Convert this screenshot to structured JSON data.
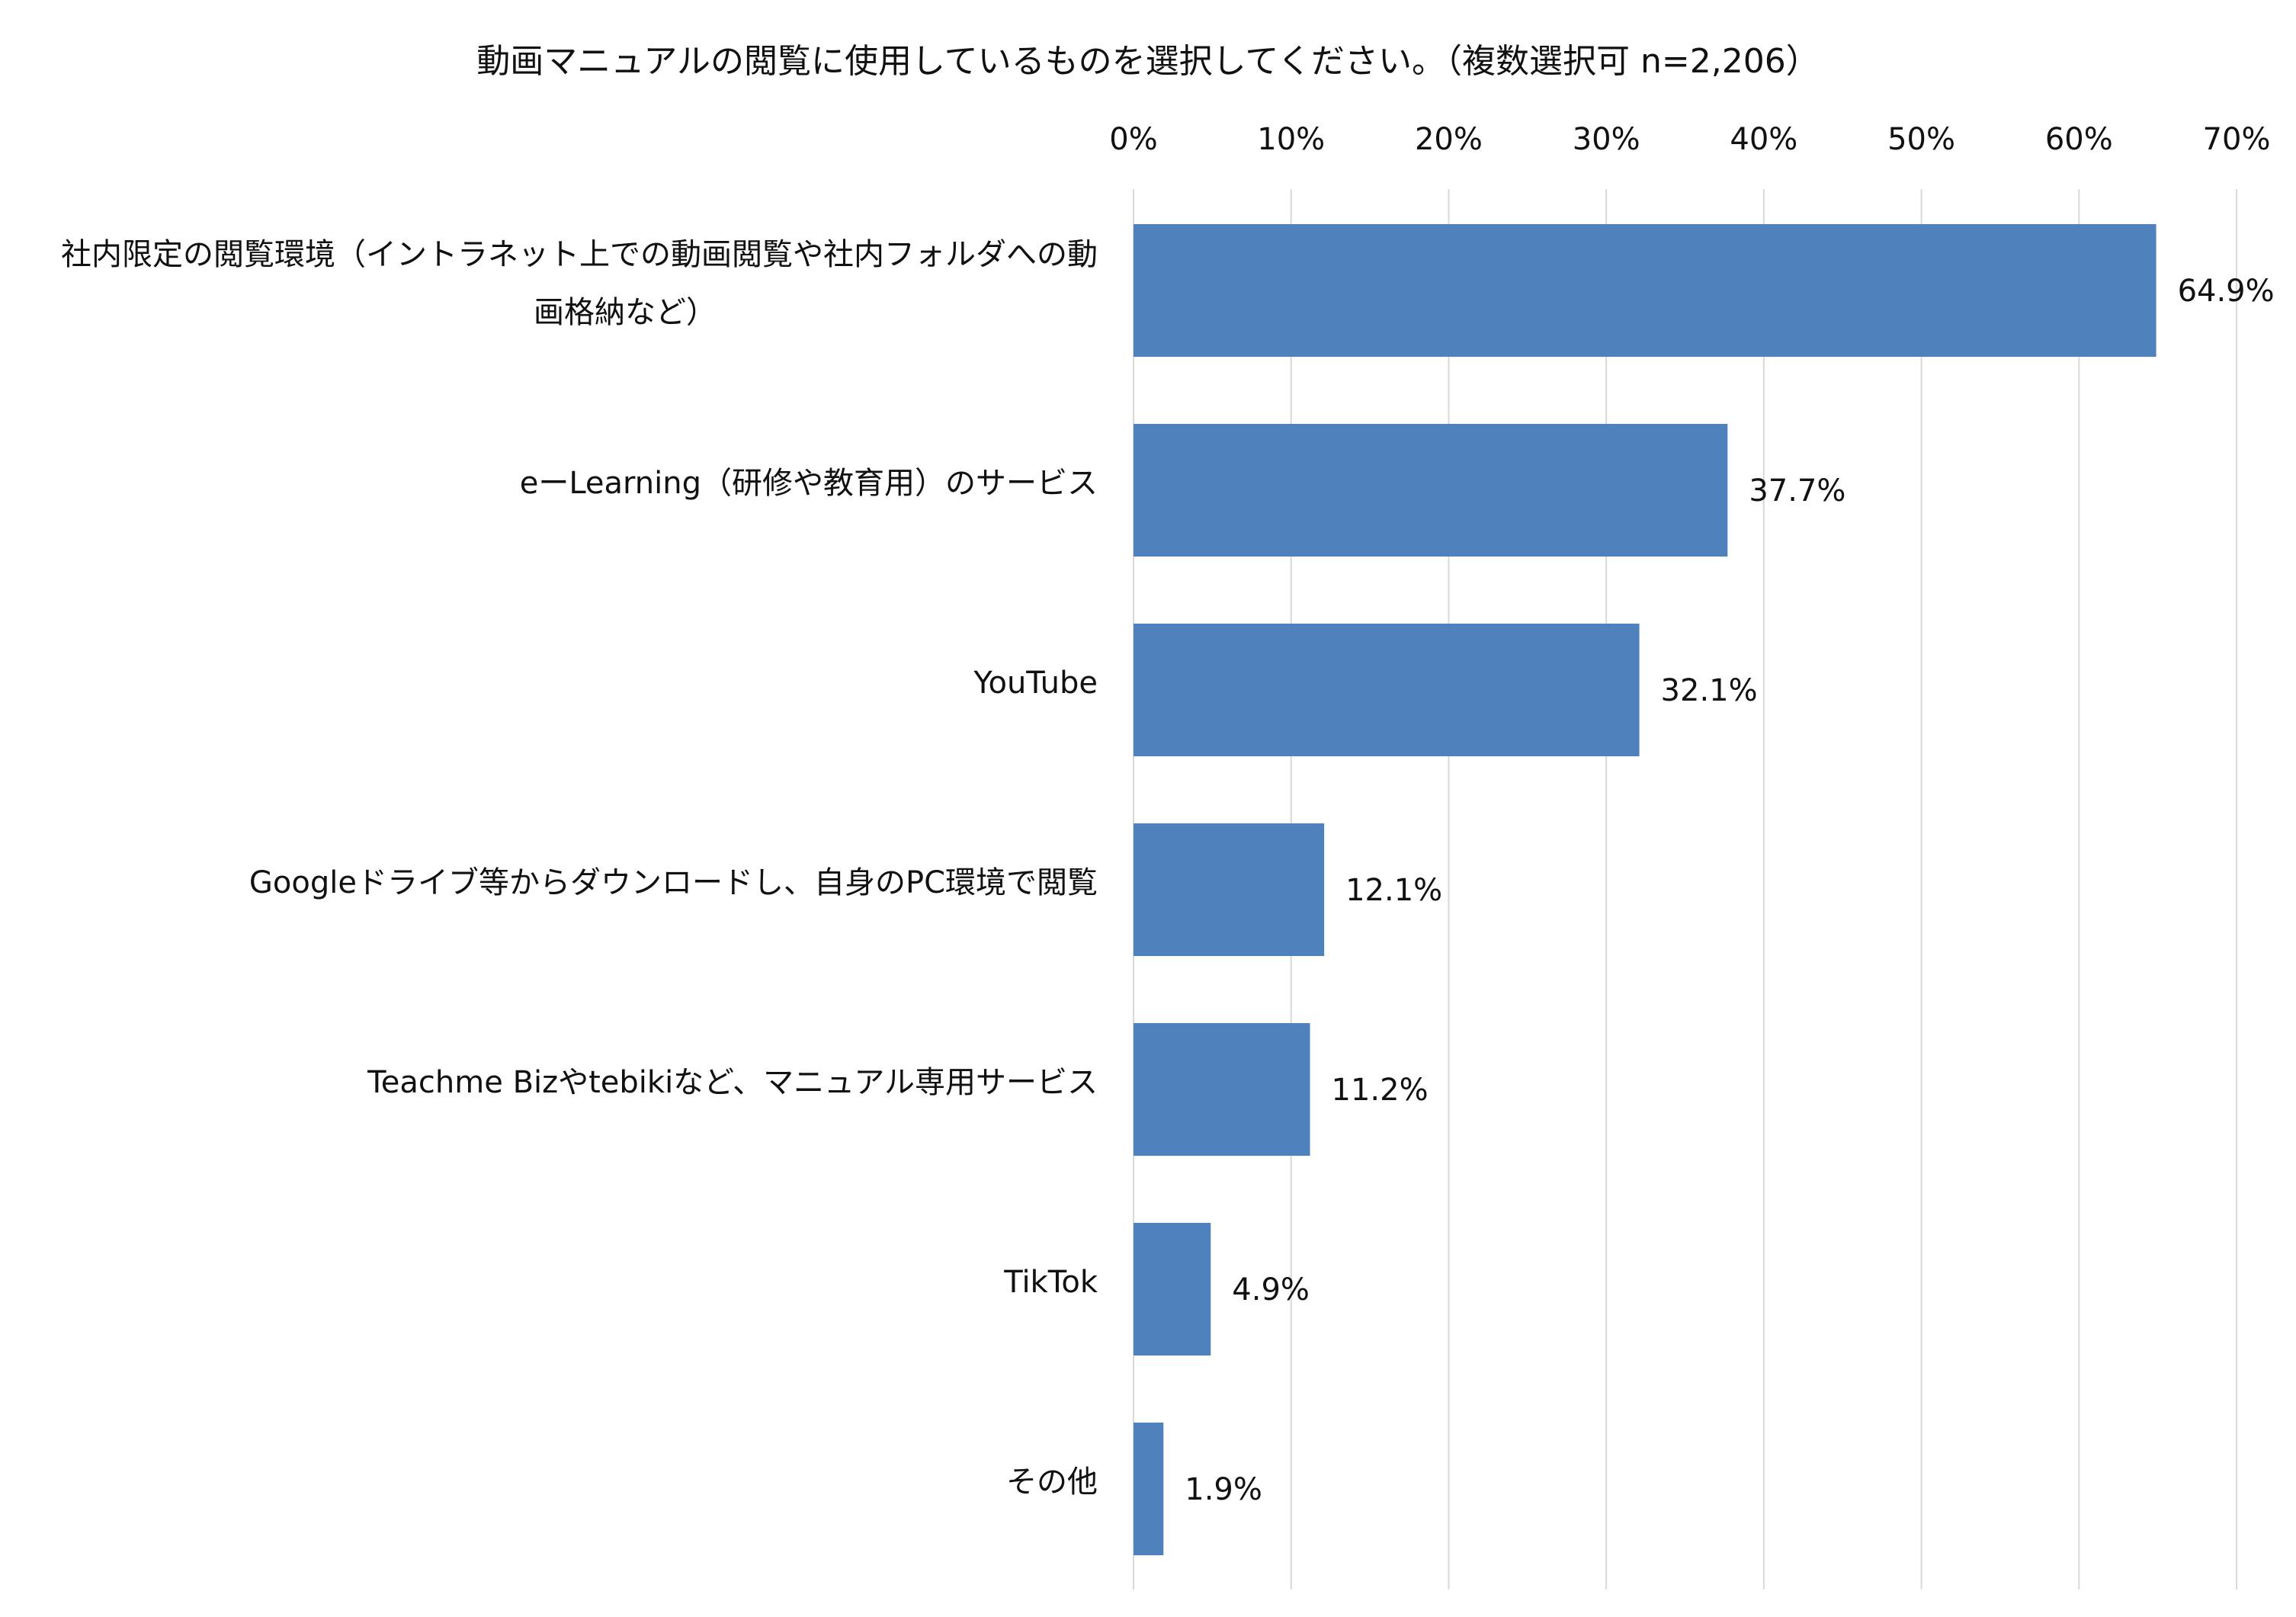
{
  "chart_data": {
    "type": "bar",
    "orientation": "horizontal",
    "title": "動画マニュアルの閲覧に使用しているものを選択してください。（複数選択可 n=2,206）",
    "categories": [
      [
        "社内限定の閲覧環境（イントラネット上での動画閲覧や社内フォルダへの動",
        "画格納など）"
      ],
      [
        "eーLearning（研修や教育用）のサービス"
      ],
      [
        "YouTube"
      ],
      [
        "Googleドライブ等からダウンロードし、自身のPC環境で閲覧"
      ],
      [
        "Teachme Bizやtebikiなど、マニュアル専用サービス"
      ],
      [
        "TikTok"
      ],
      [
        "その他"
      ]
    ],
    "values": [
      64.9,
      37.7,
      32.1,
      12.1,
      11.2,
      4.9,
      1.9
    ],
    "value_labels": [
      "64.9%",
      "37.7%",
      "32.1%",
      "12.1%",
      "11.2%",
      "4.9%",
      "1.9%"
    ],
    "xlim": [
      0,
      70
    ],
    "xticks": [
      0,
      10,
      20,
      30,
      40,
      50,
      60,
      70
    ],
    "xtick_labels": [
      "0%",
      "10%",
      "20%",
      "30%",
      "40%",
      "50%",
      "60%",
      "70%"
    ],
    "axis_position": "top",
    "grid": true,
    "colors": {
      "bar": "#4f81bd",
      "grid": "#d9d9d9",
      "text": "#111111"
    }
  }
}
